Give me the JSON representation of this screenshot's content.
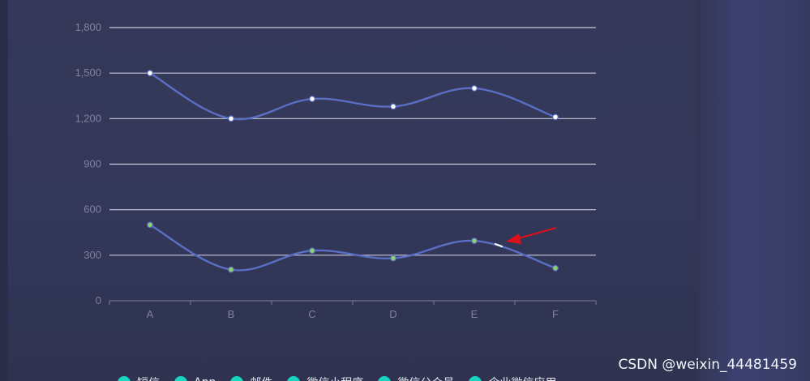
{
  "chart_data": {
    "type": "line",
    "categories": [
      "A",
      "B",
      "C",
      "D",
      "E",
      "F"
    ],
    "y_ticks": [
      "0",
      "300",
      "600",
      "900",
      "1,200",
      "1,500",
      "1,800"
    ],
    "ylim": [
      0,
      1800
    ],
    "grid": true,
    "series": [
      {
        "values": [
          1500,
          1200,
          1330,
          1280,
          1400,
          1210
        ],
        "line_color": "#5a6fc4",
        "marker_color": "#ffffff"
      },
      {
        "values": [
          500,
          205,
          330,
          280,
          395,
          215
        ],
        "line_color": "#5a6fc4",
        "marker_color": "#8fd16a"
      }
    ],
    "legend": {
      "placement": "bottom",
      "items": [
        "短信",
        "App",
        "邮件",
        "微信小程序",
        "微信公众号",
        "企业微信应用"
      ],
      "marker_color": "#16d6c0"
    },
    "annotation_arrow_color": "#e0101a"
  },
  "watermark": "CSDN @weixin_44481459"
}
